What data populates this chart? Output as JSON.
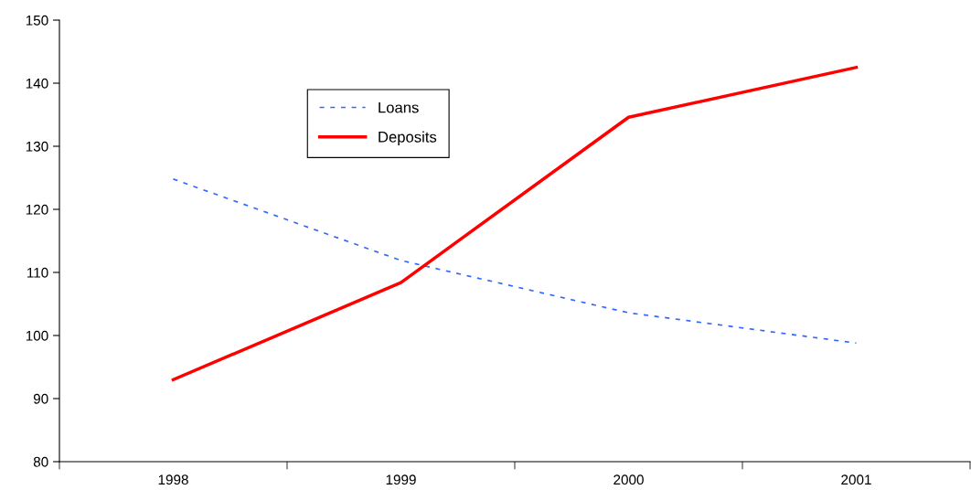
{
  "chart_data": {
    "type": "line",
    "categories": [
      "1998",
      "1999",
      "2000",
      "2001"
    ],
    "series": [
      {
        "name": "Loans",
        "color": "#3366ff",
        "line_style": "dashed",
        "values": [
          124.8,
          111.9,
          103.6,
          98.8
        ]
      },
      {
        "name": "Deposits",
        "color": "#ff0000",
        "line_style": "solid",
        "values": [
          93,
          108.4,
          134.6,
          142.5
        ]
      }
    ],
    "ylim": [
      80,
      150
    ],
    "yticks": [
      80,
      90,
      100,
      110,
      120,
      130,
      140,
      150
    ],
    "grid": false,
    "legend": "top left",
    "marker": "none"
  }
}
